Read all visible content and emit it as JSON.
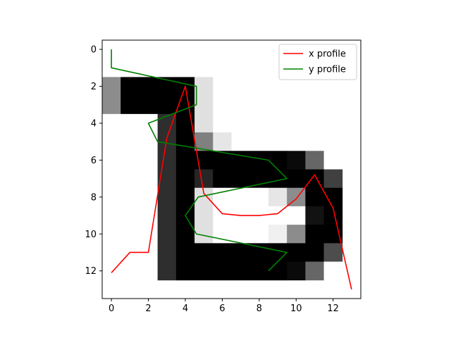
{
  "chart_data": {
    "type": "line",
    "background": "heatmap",
    "xlim": [
      -0.5,
      13.5
    ],
    "ylim": [
      13.5,
      -0.5
    ],
    "xticks": [
      0,
      2,
      4,
      6,
      8,
      10,
      12
    ],
    "yticks": [
      0,
      2,
      4,
      6,
      8,
      10,
      12
    ],
    "grid": false,
    "legend": {
      "position": "top-right"
    },
    "image": {
      "origin": "top-left",
      "colormap": "gray_r",
      "rows": [
        [
          0,
          0,
          0,
          0,
          0,
          0,
          0,
          0,
          0,
          0,
          0,
          0,
          0
        ],
        [
          0,
          0,
          0,
          0,
          0,
          0,
          0,
          0,
          0,
          0,
          0,
          0,
          0
        ],
        [
          0.45,
          1,
          1,
          1,
          1,
          0.12,
          0,
          0,
          0,
          0,
          0,
          0,
          0
        ],
        [
          0.45,
          1,
          1,
          1,
          1,
          0.12,
          0,
          0,
          0,
          0,
          0,
          0,
          0
        ],
        [
          0,
          0,
          0,
          0.82,
          1,
          0.12,
          0,
          0,
          0,
          0,
          0,
          0,
          0
        ],
        [
          0,
          0,
          0,
          0.82,
          1,
          0.5,
          0.1,
          0,
          0,
          0,
          0,
          0,
          0
        ],
        [
          0,
          0,
          0,
          0.82,
          1,
          1,
          1,
          1,
          1,
          1,
          0.96,
          0.6,
          0
        ],
        [
          0,
          0,
          0,
          0.82,
          1,
          0.85,
          1,
          1,
          1,
          1,
          1,
          1,
          0.75
        ],
        [
          0,
          0,
          0,
          0.82,
          1,
          0.12,
          0,
          0,
          0,
          0.1,
          0.45,
          1,
          1
        ],
        [
          0,
          0,
          0,
          0.82,
          1,
          0.12,
          0,
          0,
          0,
          0,
          0,
          0.93,
          1
        ],
        [
          0,
          0,
          0,
          0.82,
          1,
          0.12,
          0,
          0,
          0,
          0.06,
          0.45,
          1,
          1
        ],
        [
          0,
          0,
          0,
          0.82,
          1,
          1,
          1,
          1,
          1,
          1,
          1,
          1,
          0.7
        ],
        [
          0,
          0,
          0,
          0.82,
          1,
          1,
          1,
          1,
          1,
          1,
          0.96,
          0.6,
          0
        ]
      ]
    },
    "series": [
      {
        "name": "x profile",
        "color": "#ff0000",
        "points": [
          [
            0,
            12.1
          ],
          [
            1,
            11
          ],
          [
            2,
            11
          ],
          [
            3,
            4.8
          ],
          [
            4,
            2
          ],
          [
            5,
            7.8
          ],
          [
            6,
            8.9
          ],
          [
            7,
            9
          ],
          [
            8,
            9
          ],
          [
            9,
            8.9
          ],
          [
            10,
            8.1
          ],
          [
            11,
            6.8
          ],
          [
            12,
            8.6
          ],
          [
            13,
            13
          ]
        ]
      },
      {
        "name": "y profile",
        "color": "#008000",
        "points": [
          [
            0,
            0
          ],
          [
            0,
            1
          ],
          [
            4.6,
            2
          ],
          [
            4.6,
            3
          ],
          [
            2,
            4
          ],
          [
            2.5,
            5
          ],
          [
            8.5,
            6
          ],
          [
            9.5,
            7
          ],
          [
            4.7,
            8
          ],
          [
            4,
            9
          ],
          [
            4.6,
            10
          ],
          [
            9.5,
            11
          ],
          [
            8.5,
            12
          ]
        ]
      }
    ]
  }
}
